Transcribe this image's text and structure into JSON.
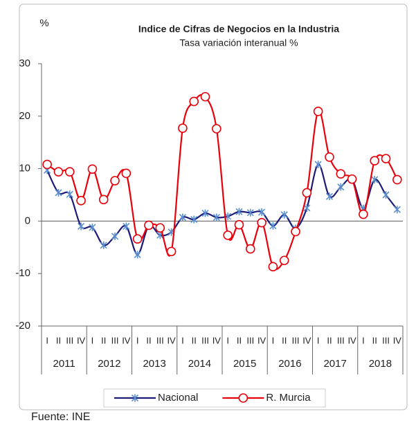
{
  "chart_data": {
    "type": "line",
    "title": "Indice de Cifras de Negocios en la Industria",
    "subtitle": "Tasa variación interanual %",
    "y_label": "%",
    "source": "Fuente: INE",
    "categories": [
      "I",
      "II",
      "III",
      "IV",
      "I",
      "II",
      "III",
      "IV",
      "I",
      "II",
      "III",
      "IV",
      "I",
      "II",
      "III",
      "IV",
      "I",
      "II",
      "III",
      "IV",
      "I",
      "II",
      "III",
      "IV",
      "I",
      "II",
      "III",
      "IV",
      "I",
      "II",
      "III",
      "IV"
    ],
    "years": [
      "2011",
      "2012",
      "2013",
      "2014",
      "2015",
      "2016",
      "2017",
      "2018"
    ],
    "ylim": [
      -20,
      30
    ],
    "yticks": [
      -20,
      -10,
      0,
      10,
      20,
      30
    ],
    "legend": "bottom",
    "series": [
      {
        "name": "Nacional",
        "color": "#1c1c78",
        "marker_color": "#5b8fd0",
        "marker": "star",
        "values": [
          9.7,
          5.4,
          5.1,
          -1.0,
          -1.2,
          -4.6,
          -2.9,
          -1.0,
          -6.4,
          -0.9,
          -2.7,
          -2.1,
          0.7,
          0.3,
          1.5,
          0.7,
          0.9,
          1.8,
          1.6,
          1.7,
          -0.9,
          1.2,
          -1.4,
          2.5,
          10.8,
          4.7,
          6.5,
          7.9,
          2.4,
          7.9,
          5.0,
          2.2
        ]
      },
      {
        "name": "R. Murcia",
        "color": "#e8000b",
        "marker_color": "#ffffff",
        "marker": "circle",
        "values": [
          10.8,
          9.4,
          9.4,
          3.9,
          9.9,
          4.1,
          7.7,
          9.1,
          -3.4,
          -0.8,
          -1.3,
          -5.8,
          17.7,
          22.8,
          23.7,
          17.6,
          -2.7,
          -0.7,
          -5.3,
          -0.3,
          -8.7,
          -7.5,
          -2.0,
          5.4,
          20.9,
          12.2,
          9.0,
          8.0,
          1.3,
          11.5,
          11.9,
          7.9
        ]
      }
    ]
  }
}
